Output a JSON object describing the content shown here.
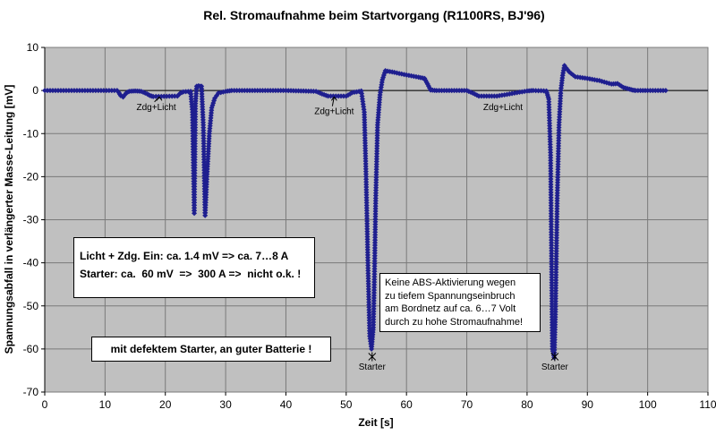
{
  "chart_data": {
    "type": "line",
    "title": "Rel. Stromaufnahme beim Startvorgang  (R1100RS, BJ'96)",
    "xlabel": "Zeit [s]",
    "ylabel": "Spannungsabfall in verlängerter Masse-Leitung [mV]",
    "xlim": [
      0,
      110
    ],
    "ylim": [
      -70,
      10
    ],
    "xticks": [
      0,
      10,
      20,
      30,
      40,
      50,
      60,
      70,
      80,
      90,
      100,
      110
    ],
    "yticks": [
      10,
      0,
      -10,
      -20,
      -30,
      -40,
      -50,
      -60,
      -70
    ],
    "grid": true,
    "legend": "none",
    "series_color": "#1f1f8f",
    "plot_bg": "#c0c0c0",
    "series": [
      {
        "x": [
          0,
          12,
          12.3,
          12.6,
          13,
          13.5,
          14,
          15,
          16,
          17,
          17.5,
          18,
          22,
          22.5,
          23,
          24.2,
          24.5,
          24.8,
          25,
          25.2,
          25.5,
          25.8,
          26,
          26.3,
          26.6,
          26.9,
          27.3,
          27.7,
          28.2,
          28.8,
          30,
          31,
          40,
          45,
          46,
          47,
          50,
          51,
          52.5,
          53,
          53.3,
          53.6,
          53.9,
          54.2,
          54.5,
          54.7,
          54.9,
          55.2,
          55.6,
          56,
          56.5,
          58,
          60,
          62,
          63,
          63.5,
          64,
          65,
          70,
          71,
          72,
          75,
          80,
          81,
          83.2,
          83.6,
          83.9,
          84.2,
          84.5,
          84.7,
          85,
          85.3,
          85.6,
          85.9,
          86.2,
          86.5,
          87,
          88,
          90,
          92,
          94,
          95,
          96,
          97,
          97.5,
          98,
          100,
          103
        ],
        "values": [
          0,
          0,
          -0.5,
          -1.2,
          -1.5,
          -0.6,
          -0.2,
          -0.1,
          -0.2,
          -0.8,
          -1.2,
          -1.4,
          -1.3,
          -0.6,
          -0.3,
          -0.2,
          -5,
          -28.5,
          -3,
          1,
          1.1,
          1,
          1,
          -8,
          -29,
          -20,
          -10,
          -4,
          -1.8,
          -0.6,
          -0.2,
          0,
          0,
          -0.2,
          -0.8,
          -1.3,
          -1.3,
          -0.5,
          -0.1,
          -5,
          -20,
          -40,
          -57,
          -60,
          -55,
          -42,
          -25,
          -8,
          -1,
          2.5,
          4.6,
          4.2,
          3.6,
          3.1,
          2.8,
          1.5,
          0.1,
          0,
          0,
          -0.6,
          -1.3,
          -1.3,
          -0.1,
          0,
          -0.1,
          -2,
          -15,
          -60,
          -62,
          -52,
          -25,
          -8,
          0,
          3.5,
          5.8,
          5.2,
          4.3,
          3.2,
          2.8,
          2.3,
          1.5,
          1.6,
          0.7,
          0.3,
          0.1,
          0,
          0,
          0
        ]
      }
    ],
    "annotations": [
      {
        "text": "Zdg+Licht",
        "x": 18.5,
        "y": -4.5,
        "arrow_to": [
          19,
          -1.5
        ]
      },
      {
        "text": "Zdg+Licht",
        "x": 48,
        "y": -5.5,
        "arrow_to": [
          48,
          -1.5
        ]
      },
      {
        "text": "Zdg+Licht",
        "x": 76,
        "y": -4.5
      },
      {
        "text": "Starter",
        "x": 54.3,
        "y": -64.8,
        "marker_at": [
          54.3,
          -61.8
        ]
      },
      {
        "text": "Starter",
        "x": 84.6,
        "y": -64.8,
        "marker_at": [
          84.6,
          -61.8
        ]
      }
    ]
  },
  "notes": {
    "box1_lines": [
      "Licht + Zdg. Ein: ca. 1.4 mV => ca. 7…8 A",
      "Starter: ca.  60 mV  =>  300 A =>  nicht o.k. !"
    ],
    "box2": "mit defektem Starter, an guter Batterie !",
    "box3_lines": [
      "Keine ABS-Aktivierung wegen",
      "zu tiefem Spannungseinbruch",
      "am Bordnetz auf ca. 6…7 Volt",
      "durch zu hohe Stromaufnahme!"
    ]
  }
}
